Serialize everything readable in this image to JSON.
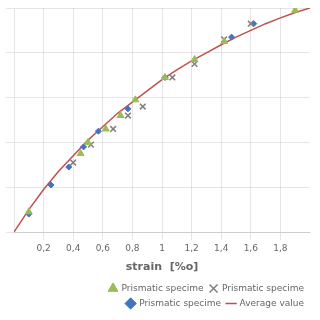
{
  "chart_data": {
    "type": "scatter",
    "xlabel": "strain  [%o]",
    "xlim": [
      0.0,
      2.0
    ],
    "ylim": [
      0,
      50
    ],
    "xticks": [
      {
        "value": 0.2,
        "label": "0,2"
      },
      {
        "value": 0.4,
        "label": "0,4"
      },
      {
        "value": 0.6,
        "label": "0,6"
      },
      {
        "value": 0.8,
        "label": "0,8"
      },
      1,
      {
        "value": 1.2,
        "label": "1,2"
      },
      {
        "value": 1.4,
        "label": "1,4"
      },
      {
        "value": 1.6,
        "label": "1,6"
      },
      {
        "value": 1.8,
        "label": "1,8"
      }
    ],
    "yticks": [
      0,
      10,
      20,
      30,
      40,
      50
    ],
    "tick_labels": "x",
    "grid": true,
    "legend": "lower right",
    "series": [
      {
        "name": "Average value",
        "type": "line",
        "color": "#c0504d",
        "x": [
          0.0,
          0.1,
          0.2,
          0.3,
          0.4,
          0.5,
          0.6,
          0.7,
          0.8,
          0.9,
          1.0,
          1.1,
          1.2,
          1.3,
          1.4,
          1.5,
          1.6,
          1.7,
          1.8,
          1.9,
          2.0
        ],
        "values": [
          0.0,
          5.0,
          9.5,
          13.5,
          17.0,
          20.5,
          23.5,
          26.5,
          29.0,
          31.5,
          34.0,
          36.2,
          38.2,
          40.0,
          41.8,
          43.5,
          45.0,
          46.5,
          47.8,
          49.0,
          50.0
        ]
      },
      {
        "name": "Prismatic specime",
        "type": "scatter",
        "marker": "triangle",
        "color": "#9bbb59",
        "x": [
          0.1,
          0.45,
          0.5,
          0.62,
          0.72,
          0.82,
          1.02,
          1.22,
          1.42,
          1.9
        ],
        "values": [
          4.5,
          17.5,
          20.0,
          23.0,
          26.0,
          29.5,
          34.5,
          38.5,
          42.5,
          49.5
        ]
      },
      {
        "name": "Prismatic specime",
        "type": "scatter",
        "marker": "x",
        "color": "#7f7f7f",
        "x": [
          0.4,
          0.52,
          0.67,
          0.77,
          0.87,
          1.07,
          1.22,
          1.42,
          1.6
        ],
        "values": [
          15.5,
          19.5,
          23.0,
          26.0,
          28.0,
          34.5,
          37.5,
          43.0,
          46.5
        ]
      },
      {
        "name": "Prismatic specime",
        "type": "scatter",
        "marker": "diamond",
        "color": "#4472c4",
        "x": [
          0.1,
          0.25,
          0.37,
          0.47,
          0.57,
          0.77,
          1.02,
          1.47,
          1.62
        ],
        "values": [
          4.0,
          10.5,
          14.5,
          19.0,
          22.5,
          27.5,
          34.5,
          43.5,
          46.5
        ]
      }
    ]
  }
}
